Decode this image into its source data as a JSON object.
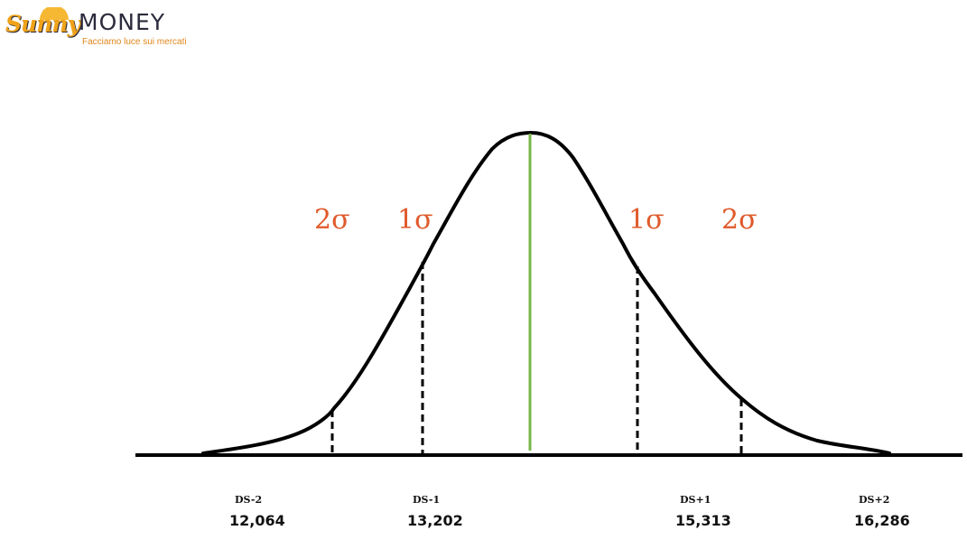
{
  "logo": {
    "script_text": "Sunny",
    "word_text": "MONEY",
    "tagline": "Facciamo luce sui mercati",
    "colors": {
      "orange": "#f0a21a",
      "dark": "#2b2b3c"
    }
  },
  "diagram": {
    "sigma_labels": {
      "left_2": "2σ",
      "left_1": "1σ",
      "right_1": "1σ",
      "right_2": "2σ"
    },
    "markers": [
      {
        "name": "DS-2",
        "value": "12,064"
      },
      {
        "name": "DS-1",
        "value": "13,202"
      },
      {
        "name": "DS+1",
        "value": "15,313"
      },
      {
        "name": "DS+2",
        "value": "16,286"
      }
    ],
    "colors": {
      "curve": "#000000",
      "mean_line": "#7ab648",
      "sigma_text": "#e05a2b"
    }
  }
}
